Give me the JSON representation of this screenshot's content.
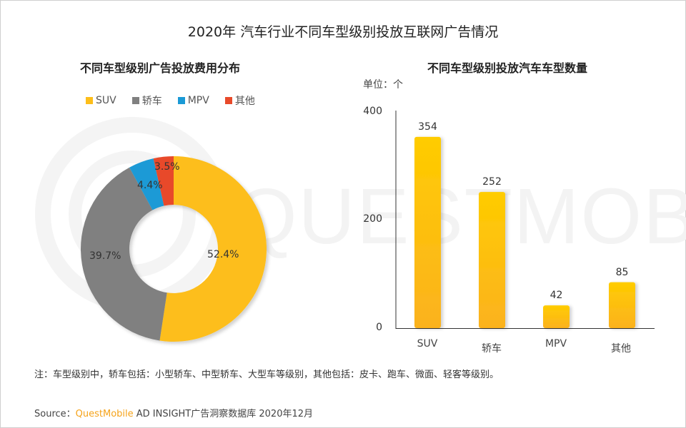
{
  "title": "2020年 汽车行业不同车型级别投放互联网广告情况",
  "watermark": "QUESTMOBILE",
  "left_panel": {
    "subtitle": "不同车型级别广告投放费用分布",
    "legend": [
      {
        "label": "SUV",
        "color": "#fdbe1a"
      },
      {
        "label": "轿车",
        "color": "#808080"
      },
      {
        "label": "MPV",
        "color": "#1a9ad6"
      },
      {
        "label": "其他",
        "color": "#e84a2a"
      }
    ]
  },
  "right_panel": {
    "subtitle": "不同车型级别投放汽车车型数量",
    "unit": "单位：个",
    "yticks": [
      "400",
      "200",
      "0"
    ]
  },
  "chart_data": [
    {
      "type": "pie",
      "variant": "donut",
      "title": "不同车型级别广告投放费用分布",
      "categories": [
        "SUV",
        "轿车",
        "MPV",
        "其他"
      ],
      "values": [
        52.4,
        39.7,
        4.4,
        3.5
      ],
      "labels": [
        "52.4%",
        "39.7%",
        "4.4%",
        "3.5%"
      ],
      "colors": [
        "#fdbe1a",
        "#808080",
        "#1a9ad6",
        "#e84a2a"
      ],
      "legend_position": "top"
    },
    {
      "type": "bar",
      "title": "不同车型级别投放汽车车型数量",
      "categories": [
        "SUV",
        "轿车",
        "MPV",
        "其他"
      ],
      "values": [
        354,
        252,
        42,
        85
      ],
      "labels": [
        "354",
        "252",
        "42",
        "85"
      ],
      "xlabel": "",
      "ylabel": "单位：个",
      "ylim": [
        0,
        400
      ],
      "yticks": [
        0,
        200,
        400
      ],
      "grid": false,
      "color": "#fdbe1a"
    }
  ],
  "footer": {
    "note": "注：车型级别中，轿车包括：小型轿车、中型轿车、大型车等级别，其他包括：皮卡、跑车、微面、轻客等级别。",
    "source_prefix": "Source：",
    "source_brand": "QuestMobile",
    "source_rest": " AD INSIGHT广告洞察数据库 2020年12月"
  }
}
